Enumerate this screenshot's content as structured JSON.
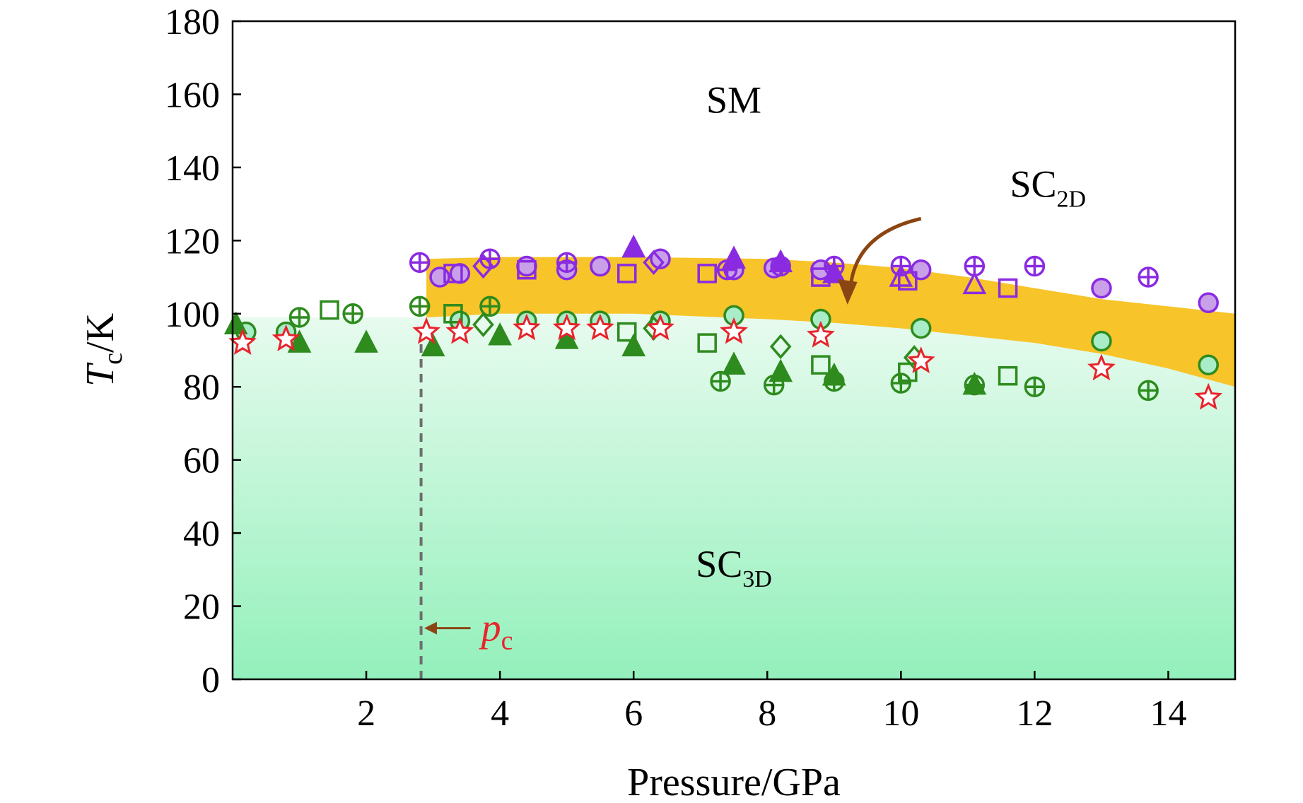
{
  "chart_data": {
    "type": "scatter",
    "xlabel": "Pressure/GPa",
    "ylabel_main": "T",
    "ylabel_sub": "c",
    "ylabel_unit": "/K",
    "xlim": [
      0,
      15
    ],
    "ylim": [
      0,
      180
    ],
    "xticks": [
      2,
      4,
      6,
      8,
      10,
      12,
      14
    ],
    "yticks": [
      0,
      20,
      40,
      60,
      80,
      100,
      120,
      140,
      160,
      180
    ],
    "grid": false,
    "colors": {
      "purple": "#8a2be2",
      "purple_fill": "#c9a0e8",
      "green": "#2e8b1e",
      "green_fill": "#a8ecc8",
      "star": "#e8242c",
      "band": "#f7c42a",
      "region_top": "#e8fbef",
      "region_bottom": "#93f0bb",
      "arrow": "#8b4513",
      "dashed": "#6e6e6e"
    },
    "regions": [
      {
        "label": "SM",
        "sub": "",
        "x": 7.5,
        "y": 155
      },
      {
        "label": "SC",
        "sub": "2D",
        "x": 12.2,
        "y": 132
      },
      {
        "label": "SC",
        "sub": "3D",
        "x": 7.5,
        "y": 28
      }
    ],
    "pc": {
      "label": "p",
      "sub": "c",
      "x": 2.82,
      "arrow_y": 14
    },
    "band_2d": {
      "x": [
        2.9,
        4,
        6,
        8,
        9,
        10,
        11,
        12,
        13,
        14,
        15
      ],
      "upper": [
        115,
        115.5,
        115.5,
        115,
        114,
        112.5,
        110,
        107,
        104,
        102,
        100
      ],
      "lower": [
        99,
        100,
        100,
        98.5,
        97.5,
        96,
        94,
        92,
        89,
        85,
        80
      ]
    },
    "series": [
      {
        "marker": "circle",
        "color": "purple",
        "filled": true,
        "points": [
          [
            3.1,
            110
          ],
          [
            3.4,
            111
          ],
          [
            4.4,
            113
          ],
          [
            5.0,
            112
          ],
          [
            5.5,
            113
          ],
          [
            6.4,
            115
          ],
          [
            7.5,
            112
          ],
          [
            8.1,
            112.5
          ],
          [
            8.8,
            112
          ],
          [
            10.3,
            112
          ],
          [
            13.0,
            107
          ],
          [
            14.6,
            103
          ]
        ]
      },
      {
        "marker": "oplus",
        "color": "purple",
        "filled": false,
        "points": [
          [
            2.8,
            114
          ],
          [
            3.85,
            115
          ],
          [
            5.0,
            114
          ],
          [
            7.4,
            112
          ],
          [
            8.2,
            113
          ],
          [
            9.0,
            113
          ],
          [
            10.0,
            113
          ],
          [
            11.1,
            113
          ],
          [
            12.0,
            113
          ],
          [
            13.7,
            110
          ]
        ]
      },
      {
        "marker": "square",
        "color": "purple",
        "filled": false,
        "points": [
          [
            3.3,
            111
          ],
          [
            4.4,
            112
          ],
          [
            5.9,
            111
          ],
          [
            7.1,
            111
          ],
          [
            8.8,
            110
          ],
          [
            10.1,
            109
          ],
          [
            11.6,
            107
          ]
        ]
      },
      {
        "marker": "diamond",
        "color": "purple",
        "filled": false,
        "points": [
          [
            3.75,
            113
          ],
          [
            6.3,
            114
          ]
        ]
      },
      {
        "marker": "triangle",
        "color": "purple",
        "filled": true,
        "points": [
          [
            6.0,
            118
          ],
          [
            7.5,
            115
          ],
          [
            8.2,
            114
          ],
          [
            9.0,
            111
          ]
        ]
      },
      {
        "marker": "triangle",
        "color": "purple",
        "filled": false,
        "points": [
          [
            10.0,
            110
          ],
          [
            11.1,
            108
          ]
        ]
      },
      {
        "marker": "circle",
        "color": "green",
        "filled": true,
        "points": [
          [
            0.2,
            95
          ],
          [
            0.8,
            95
          ],
          [
            3.4,
            98
          ],
          [
            4.4,
            98
          ],
          [
            5.0,
            98
          ],
          [
            5.5,
            98
          ],
          [
            6.4,
            98
          ],
          [
            7.5,
            99.5
          ],
          [
            8.8,
            98.5
          ],
          [
            10.3,
            96
          ],
          [
            13.0,
            92.5
          ],
          [
            14.6,
            86
          ]
        ]
      },
      {
        "marker": "oplus",
        "color": "green",
        "filled": false,
        "points": [
          [
            1.0,
            99
          ],
          [
            1.8,
            100
          ],
          [
            2.8,
            102
          ],
          [
            3.85,
            102
          ],
          [
            7.3,
            81.5
          ],
          [
            8.1,
            80.5
          ],
          [
            9.0,
            81.5
          ],
          [
            10.0,
            81
          ],
          [
            11.1,
            80.5
          ],
          [
            12.0,
            80
          ],
          [
            13.7,
            79
          ]
        ]
      },
      {
        "marker": "square",
        "color": "green",
        "filled": false,
        "points": [
          [
            1.45,
            101
          ],
          [
            3.3,
            100
          ],
          [
            5.9,
            95
          ],
          [
            7.1,
            92
          ],
          [
            8.8,
            86
          ],
          [
            10.1,
            84
          ],
          [
            11.6,
            83
          ]
        ]
      },
      {
        "marker": "diamond",
        "color": "green",
        "filled": false,
        "points": [
          [
            3.75,
            97
          ],
          [
            6.3,
            96
          ],
          [
            8.2,
            91
          ],
          [
            10.2,
            88
          ]
        ]
      },
      {
        "marker": "triangle",
        "color": "green",
        "filled": true,
        "points": [
          [
            0.05,
            97
          ],
          [
            1.0,
            92
          ],
          [
            2.0,
            92
          ],
          [
            3.0,
            91
          ],
          [
            4.0,
            94
          ],
          [
            5.0,
            93
          ],
          [
            6.0,
            91
          ],
          [
            7.5,
            86
          ],
          [
            8.2,
            84
          ],
          [
            9.0,
            83
          ],
          [
            11.1,
            80.5
          ]
        ]
      },
      {
        "marker": "star",
        "color": "star",
        "filled": false,
        "points": [
          [
            0.15,
            92
          ],
          [
            0.8,
            93
          ],
          [
            2.9,
            95
          ],
          [
            3.4,
            95
          ],
          [
            4.4,
            96
          ],
          [
            5.0,
            96
          ],
          [
            5.5,
            96
          ],
          [
            6.4,
            96
          ],
          [
            7.5,
            95
          ],
          [
            8.8,
            94
          ],
          [
            10.3,
            87
          ],
          [
            13.0,
            85
          ],
          [
            14.6,
            77
          ]
        ]
      }
    ]
  }
}
